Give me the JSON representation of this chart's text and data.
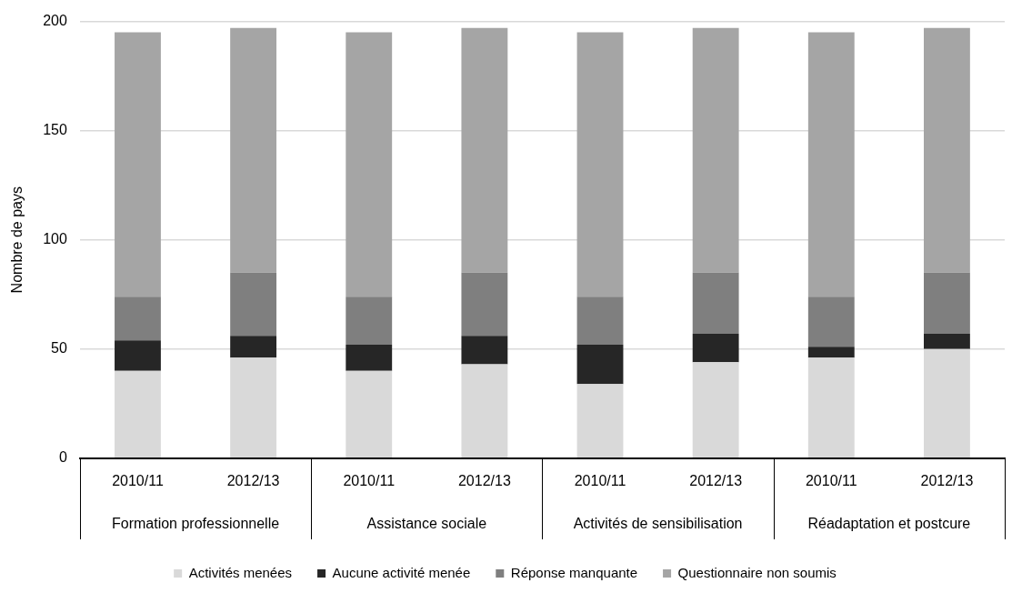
{
  "chart_data": {
    "type": "bar",
    "stacked": true,
    "ylabel": "Nombre de pays",
    "categories": [
      "2010/11",
      "2012/13",
      "2010/11",
      "2012/13",
      "2010/11",
      "2012/13",
      "2010/11",
      "2012/13"
    ],
    "annotations": [
      "Formation professionnelle",
      "Assistance sociale",
      "Activités de sensibilisation",
      "Réadaptation et postcure"
    ],
    "series": [
      {
        "name": "Activités menées",
        "color": "#d9d9d9",
        "values": [
          40,
          46,
          40,
          43,
          34,
          44,
          46,
          50
        ]
      },
      {
        "name": "Aucune activité menée",
        "color": "#262626",
        "values": [
          14,
          10,
          12,
          13,
          18,
          13,
          5,
          7
        ]
      },
      {
        "name": "Réponse manquante",
        "color": "#7f7f7f",
        "values": [
          20,
          29,
          22,
          29,
          22,
          28,
          23,
          28
        ]
      },
      {
        "name": "Questionnaire non soumis",
        "color": "#a5a5a5",
        "values": [
          121,
          112,
          121,
          112,
          121,
          112,
          121,
          112
        ]
      }
    ],
    "ylim": [
      0,
      200
    ],
    "yticks": [
      0,
      50,
      100,
      150,
      200
    ],
    "grid": "y",
    "legend": "bottom"
  }
}
